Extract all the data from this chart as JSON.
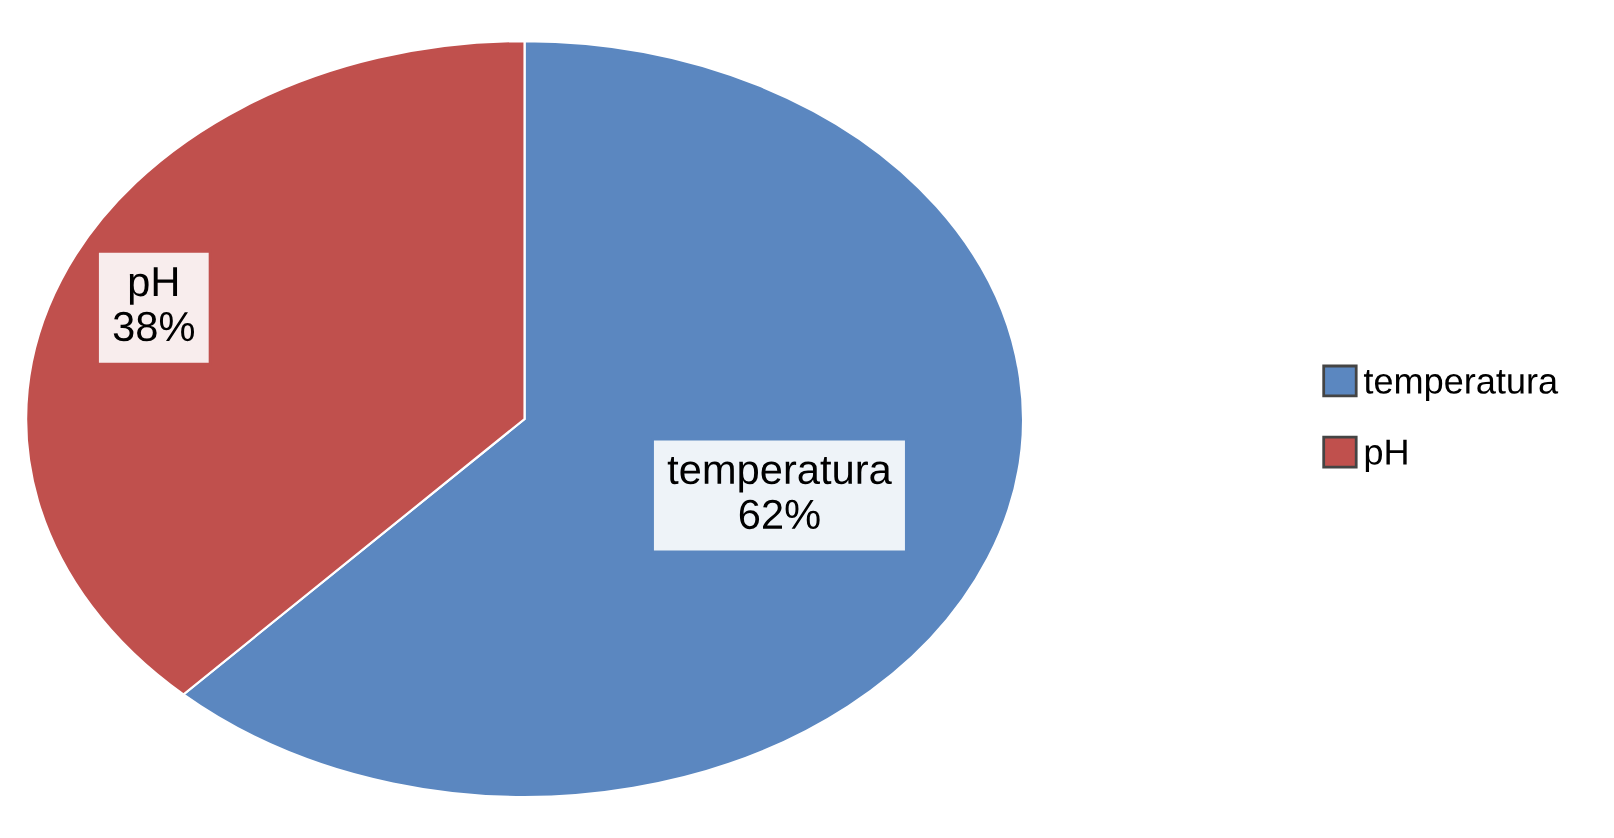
{
  "chart_data": {
    "type": "pie",
    "categories": [
      "temperatura",
      "pH"
    ],
    "values": [
      62,
      38
    ],
    "colors": [
      "#5b87c0",
      "#c0504d"
    ],
    "value_labels": [
      "temperatura\n62%",
      "pH\n38%"
    ],
    "legend": "right"
  }
}
